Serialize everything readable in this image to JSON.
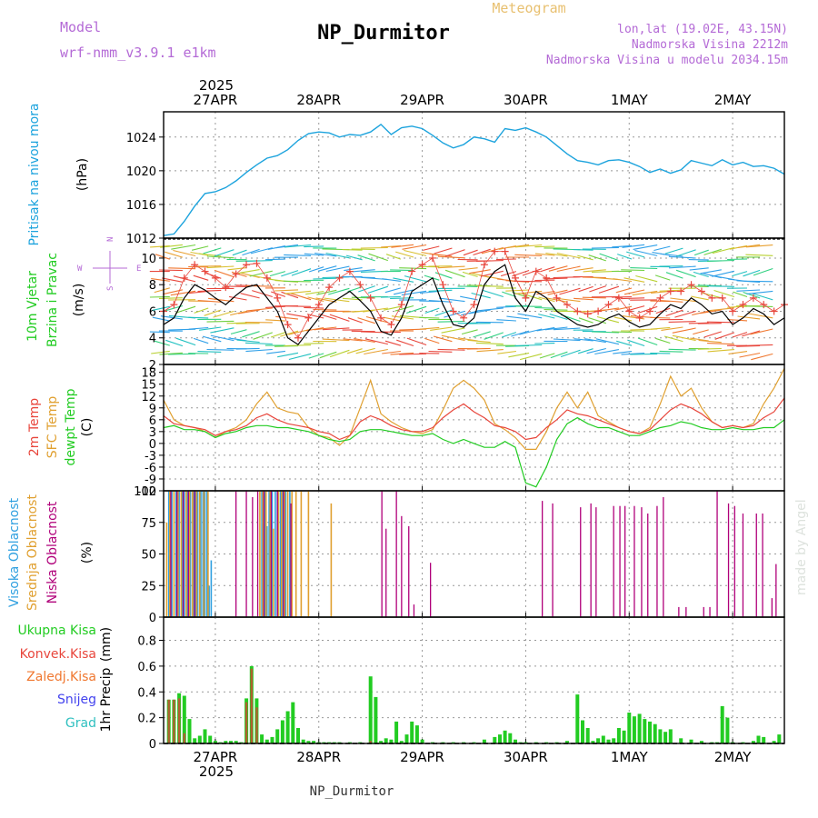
{
  "header": {
    "model_label": "Model",
    "model_value": "wrf-nmm_v3.9.1 e1km",
    "title": "NP_Durmitor",
    "subtitle": "Meteogram",
    "lonlat": "lon,lat (19.02E, 43.15N)",
    "elev": "Nadmorska Visina 2212m",
    "elev_model": "Nadmorska Visina u modelu 2034.15m",
    "footer": "NP_Durmitor",
    "watermark": "made by Angel"
  },
  "time_axis": {
    "year": "2025",
    "days": [
      "27APR",
      "28APR",
      "29APR",
      "30APR",
      "1MAY",
      "2MAY"
    ],
    "start_offset_days": -0.5,
    "end_offset_days": 5.5
  },
  "colors": {
    "pressure": "#1ca3dd",
    "temp2m": "#e8463c",
    "sfc": "#e0a030",
    "dewpt": "#22cc22",
    "low_cloud": "#b0007a",
    "mid_cloud": "#e0a030",
    "high_cloud": "#30a0e0",
    "precip": "#22cc22",
    "conv": "#e8463c"
  },
  "chart_data": [
    {
      "name": "pressure",
      "type": "line",
      "ylabel_main": "Pritisak na nivou mora",
      "ylabel_unit": "(hPa)",
      "ylim": [
        1012,
        1027
      ],
      "yticks": [
        1012,
        1016,
        1020,
        1024
      ],
      "x_days": [
        -0.5,
        -0.4,
        -0.3,
        -0.2,
        -0.1,
        0,
        0.1,
        0.2,
        0.3,
        0.4,
        0.5,
        0.6,
        0.7,
        0.8,
        0.9,
        1.0,
        1.1,
        1.2,
        1.3,
        1.4,
        1.5,
        1.6,
        1.7,
        1.8,
        1.9,
        2.0,
        2.1,
        2.2,
        2.3,
        2.4,
        2.5,
        2.6,
        2.7,
        2.8,
        2.9,
        3.0,
        3.1,
        3.2,
        3.3,
        3.4,
        3.5,
        3.6,
        3.7,
        3.8,
        3.9,
        4.0,
        4.1,
        4.2,
        4.3,
        4.4,
        4.5,
        4.6,
        4.7,
        4.8,
        4.9,
        5.0,
        5.1,
        5.2,
        5.3,
        5.4,
        5.5
      ],
      "values": [
        1012.3,
        1012.5,
        1014.0,
        1015.8,
        1017.3,
        1017.5,
        1018.0,
        1018.8,
        1019.8,
        1020.7,
        1021.5,
        1021.8,
        1022.5,
        1023.6,
        1024.4,
        1024.6,
        1024.5,
        1024.0,
        1024.3,
        1024.2,
        1024.6,
        1025.5,
        1024.3,
        1025.1,
        1025.3,
        1025.0,
        1024.2,
        1023.3,
        1022.7,
        1023.1,
        1024.0,
        1023.8,
        1023.4,
        1025.0,
        1024.8,
        1025.1,
        1024.6,
        1024.0,
        1023.0,
        1022.0,
        1021.2,
        1021.0,
        1020.7,
        1021.2,
        1021.3,
        1021.0,
        1020.5,
        1019.8,
        1020.2,
        1019.7,
        1020.1,
        1021.2,
        1020.9,
        1020.6,
        1021.3,
        1020.7,
        1021.0,
        1020.5,
        1020.6,
        1020.3,
        1019.6
      ]
    },
    {
      "name": "wind",
      "type": "line",
      "ylabel_main": "10m Vjetar",
      "ylabel_sub": "Brzina i Pravac",
      "ylabel_unit": "(m/s)",
      "ylim": [
        2,
        11.5
      ],
      "yticks": [
        2,
        4,
        6,
        8,
        10
      ],
      "compass": {
        "n": "N",
        "e": "E",
        "w": "W",
        "s": "S"
      },
      "x_days": [
        -0.5,
        -0.4,
        -0.3,
        -0.2,
        -0.1,
        0,
        0.1,
        0.2,
        0.3,
        0.4,
        0.5,
        0.6,
        0.7,
        0.8,
        0.9,
        1.0,
        1.1,
        1.2,
        1.3,
        1.4,
        1.5,
        1.6,
        1.7,
        1.8,
        1.9,
        2.0,
        2.1,
        2.2,
        2.3,
        2.4,
        2.5,
        2.6,
        2.7,
        2.8,
        2.9,
        3.0,
        3.1,
        3.2,
        3.3,
        3.4,
        3.5,
        3.6,
        3.7,
        3.8,
        3.9,
        4.0,
        4.1,
        4.2,
        4.3,
        4.4,
        4.5,
        4.6,
        4.7,
        4.8,
        4.9,
        5.0,
        5.1,
        5.2,
        5.3,
        5.4,
        5.5
      ],
      "series": [
        {
          "label": "speed",
          "values": [
            5.0,
            5.5,
            7.0,
            8.0,
            7.6,
            7.0,
            6.5,
            7.2,
            7.8,
            8.0,
            7.0,
            6.0,
            4.0,
            3.5,
            4.5,
            5.5,
            6.5,
            7.0,
            7.5,
            6.8,
            6.0,
            4.5,
            4.2,
            5.5,
            7.5,
            8.0,
            8.5,
            6.5,
            5.0,
            4.8,
            5.5,
            8.0,
            9.0,
            9.5,
            7.0,
            6.0,
            7.5,
            7.0,
            6.0,
            5.5,
            5.0,
            4.8,
            5.0,
            5.5,
            5.8,
            5.2,
            4.8,
            5.0,
            5.8,
            6.5,
            6.2,
            7.0,
            6.5,
            5.8,
            6.0,
            5.0,
            5.5,
            6.2,
            5.8,
            5.0,
            5.5
          ]
        },
        {
          "label": "gust",
          "values": [
            6.0,
            6.5,
            8.5,
            9.5,
            9.0,
            8.5,
            7.8,
            8.8,
            9.5,
            9.6,
            8.5,
            7.0,
            5.0,
            4.0,
            5.5,
            6.5,
            7.8,
            8.5,
            9.0,
            8.0,
            7.0,
            5.5,
            5.0,
            6.5,
            9.0,
            9.5,
            10.0,
            8.0,
            6.0,
            5.5,
            6.5,
            9.5,
            10.5,
            10.5,
            8.5,
            7.0,
            9.0,
            8.5,
            7.0,
            6.5,
            6.0,
            5.8,
            6.0,
            6.5,
            7.0,
            6.0,
            5.5,
            6.0,
            7.0,
            7.5,
            7.5,
            8.0,
            7.5,
            7.0,
            7.0,
            6.0,
            6.5,
            7.0,
            6.5,
            6.0,
            6.5
          ]
        }
      ]
    },
    {
      "name": "temperature",
      "type": "line",
      "ylabel_lines": [
        "2m Temp",
        "SFC Temp",
        "dewpt Temp"
      ],
      "ylabel_unit": "(C)",
      "ylim": [
        -12,
        20
      ],
      "yticks": [
        -12,
        -9,
        -6,
        -3,
        0,
        3,
        6,
        9,
        12,
        15,
        18
      ],
      "x_days": [
        -0.5,
        -0.4,
        -0.3,
        -0.2,
        -0.1,
        0,
        0.1,
        0.2,
        0.3,
        0.4,
        0.5,
        0.6,
        0.7,
        0.8,
        0.9,
        1.0,
        1.1,
        1.2,
        1.3,
        1.4,
        1.5,
        1.6,
        1.7,
        1.8,
        1.9,
        2.0,
        2.1,
        2.2,
        2.3,
        2.4,
        2.5,
        2.6,
        2.7,
        2.8,
        2.9,
        3.0,
        3.1,
        3.2,
        3.3,
        3.4,
        3.5,
        3.6,
        3.7,
        3.8,
        3.9,
        4.0,
        4.1,
        4.2,
        4.3,
        4.4,
        4.5,
        4.6,
        4.7,
        4.8,
        4.9,
        5.0,
        5.1,
        5.2,
        5.3,
        5.4,
        5.5
      ],
      "series": [
        {
          "label": "2m",
          "values": [
            7.0,
            5.0,
            4.5,
            4.0,
            3.5,
            2.0,
            3.0,
            3.5,
            4.5,
            6.5,
            7.5,
            6.0,
            5.0,
            4.5,
            4.0,
            3.0,
            2.5,
            1.0,
            2.0,
            5.5,
            7.0,
            6.0,
            4.5,
            3.5,
            3.0,
            3.0,
            4.0,
            6.5,
            8.5,
            10.0,
            8.0,
            6.5,
            4.5,
            4.0,
            3.0,
            1.0,
            1.5,
            4.0,
            6.0,
            8.5,
            7.5,
            7.0,
            6.0,
            5.0,
            4.0,
            3.0,
            2.5,
            3.5,
            6.0,
            8.5,
            10.0,
            9.0,
            7.5,
            5.5,
            4.0,
            4.5,
            4.0,
            4.5,
            6.5,
            8.0,
            11.5
          ]
        },
        {
          "label": "SFC",
          "values": [
            11.0,
            6.0,
            4.5,
            4.0,
            3.0,
            1.5,
            3.0,
            4.0,
            6.0,
            10.0,
            13.0,
            9.0,
            8.0,
            7.5,
            4.0,
            2.0,
            1.5,
            -0.5,
            2.0,
            9.0,
            16.0,
            7.5,
            5.5,
            4.0,
            3.0,
            2.5,
            3.5,
            8.5,
            14.0,
            16.0,
            14.0,
            11.0,
            5.0,
            3.5,
            1.5,
            -1.5,
            -1.5,
            3.0,
            9.0,
            13.0,
            9.0,
            13.0,
            7.0,
            5.5,
            4.0,
            3.0,
            2.5,
            4.0,
            10.0,
            17.0,
            12.0,
            14.0,
            9.0,
            5.5,
            4.0,
            4.5,
            4.0,
            5.0,
            10.0,
            14.0,
            19.0
          ]
        },
        {
          "label": "dewpt",
          "values": [
            4.0,
            4.5,
            3.5,
            3.5,
            3.0,
            1.5,
            2.5,
            3.0,
            4.0,
            4.5,
            4.5,
            4.0,
            4.0,
            3.5,
            3.0,
            2.0,
            1.0,
            0.5,
            1.0,
            3.0,
            3.5,
            3.5,
            3.0,
            2.5,
            2.0,
            2.0,
            2.5,
            1.0,
            0.0,
            1.0,
            0.0,
            -1.0,
            -1.0,
            0.5,
            -1.0,
            -10.0,
            -11.0,
            -6.0,
            1.0,
            5.0,
            6.5,
            5.0,
            4.0,
            4.0,
            3.0,
            2.0,
            2.0,
            3.0,
            4.0,
            4.5,
            5.5,
            5.0,
            4.0,
            3.5,
            3.5,
            4.0,
            3.5,
            3.5,
            4.0,
            4.0,
            6.0
          ]
        }
      ]
    },
    {
      "name": "cloud",
      "type": "bar",
      "ylabel_lines": [
        "Visoka Oblacnost",
        "Srednja Oblacnost",
        "Niska Oblacnost"
      ],
      "ylabel_unit": "(%)",
      "ylim": [
        0,
        100
      ],
      "yticks": [
        0,
        25,
        50,
        75,
        100
      ],
      "high_x": [
        -0.45,
        -0.42,
        -0.38,
        -0.35,
        -0.32,
        -0.3,
        -0.27,
        -0.24,
        -0.21,
        -0.19,
        -0.17,
        -0.14,
        -0.12,
        -0.1,
        -0.08,
        -0.06,
        -0.04,
        0.45,
        0.48,
        0.5,
        0.52,
        0.55,
        0.58,
        0.6,
        0.63,
        0.65,
        0.68,
        0.72
      ],
      "high_v": [
        100,
        100,
        100,
        100,
        100,
        100,
        100,
        100,
        100,
        100,
        100,
        100,
        100,
        100,
        100,
        25,
        45,
        100,
        100,
        72,
        100,
        100,
        100,
        100,
        100,
        100,
        100,
        100
      ],
      "mid_x": [
        -0.47,
        -0.44,
        -0.4,
        -0.36,
        -0.33,
        -0.28,
        -0.25,
        -0.22,
        -0.18,
        -0.15,
        -0.11,
        -0.07,
        0.43,
        0.46,
        0.49,
        0.53,
        0.56,
        0.61,
        0.64,
        0.67,
        0.7,
        0.74,
        0.78,
        0.83,
        0.9,
        1.12
      ],
      "mid_v": [
        75,
        100,
        100,
        100,
        100,
        100,
        100,
        100,
        100,
        100,
        100,
        100,
        100,
        100,
        100,
        100,
        70,
        100,
        100,
        100,
        100,
        100,
        100,
        100,
        100,
        90
      ],
      "low_x": [
        -0.43,
        -0.37,
        -0.31,
        -0.26,
        -0.2,
        0.2,
        0.3,
        0.36,
        0.41,
        0.47,
        0.54,
        0.6,
        0.66,
        0.73,
        1.61,
        1.65,
        1.75,
        1.8,
        1.87,
        1.92,
        2.08,
        3.16,
        3.26,
        3.53,
        3.63,
        3.68,
        3.85,
        3.91,
        3.96,
        4.05,
        4.12,
        4.18,
        4.27,
        4.33,
        4.48,
        4.55,
        4.72,
        4.78,
        4.85,
        4.96,
        5.02,
        5.1,
        5.23,
        5.29,
        5.38,
        5.42
      ],
      "low_v": [
        100,
        100,
        100,
        100,
        100,
        100,
        100,
        95,
        100,
        100,
        100,
        100,
        100,
        90,
        100,
        70,
        100,
        80,
        72,
        10,
        43,
        92,
        90,
        87,
        90,
        87,
        88,
        88,
        88,
        88,
        87,
        82,
        88,
        95,
        8,
        8,
        8,
        8,
        100,
        90,
        88,
        82,
        82,
        82,
        15,
        42
      ]
    },
    {
      "name": "precipitation",
      "type": "bar",
      "ylabel_main": "1hr Precip",
      "ylabel_unit": "(mm)",
      "legend": [
        "Ukupna Kisa",
        "Konvek.Kisa",
        "Zaledj.Kisa",
        "Snijeg",
        "Grad"
      ],
      "ylim": [
        0,
        0.98
      ],
      "yticks": [
        0,
        0.2,
        0.4,
        0.6,
        0.8
      ],
      "ytick_labels": [
        "0",
        "0.2",
        "0.4",
        "0.6",
        "0.8"
      ],
      "total_x": [
        -0.45,
        -0.4,
        -0.35,
        -0.3,
        -0.25,
        -0.2,
        -0.15,
        -0.1,
        -0.05,
        0.0,
        0.05,
        0.1,
        0.15,
        0.2,
        0.25,
        0.3,
        0.35,
        0.4,
        0.45,
        0.5,
        0.55,
        0.6,
        0.65,
        0.7,
        0.75,
        0.8,
        0.85,
        0.9,
        0.95,
        1.0,
        1.05,
        1.1,
        1.15,
        1.2,
        1.3,
        1.4,
        1.5,
        1.55,
        1.6,
        1.65,
        1.7,
        1.75,
        1.8,
        1.85,
        1.9,
        1.95,
        2.0,
        2.1,
        2.2,
        2.3,
        2.4,
        2.5,
        2.6,
        2.7,
        2.75,
        2.8,
        2.85,
        2.9,
        2.95,
        3.0,
        3.1,
        3.2,
        3.3,
        3.4,
        3.5,
        3.55,
        3.6,
        3.65,
        3.7,
        3.75,
        3.8,
        3.85,
        3.9,
        3.95,
        4.0,
        4.05,
        4.1,
        4.15,
        4.2,
        4.25,
        4.3,
        4.35,
        4.4,
        4.5,
        4.6,
        4.7,
        4.8,
        4.85,
        4.9,
        4.95,
        5.0,
        5.1,
        5.2,
        5.25,
        5.3,
        5.4,
        5.45
      ],
      "total_v": [
        0.34,
        0.34,
        0.39,
        0.37,
        0.19,
        0.04,
        0.06,
        0.11,
        0.06,
        0.02,
        0.01,
        0.02,
        0.02,
        0.02,
        0.01,
        0.35,
        0.6,
        0.35,
        0.07,
        0.03,
        0.05,
        0.11,
        0.18,
        0.25,
        0.32,
        0.12,
        0.03,
        0.02,
        0.02,
        0.01,
        0.01,
        0.01,
        0.01,
        0.01,
        0.01,
        0.01,
        0.52,
        0.36,
        0.02,
        0.04,
        0.03,
        0.17,
        0.02,
        0.07,
        0.17,
        0.14,
        0.03,
        0.01,
        0.01,
        0.01,
        0.01,
        0.01,
        0.03,
        0.05,
        0.07,
        0.1,
        0.08,
        0.03,
        0.01,
        0.01,
        0.01,
        0.01,
        0.01,
        0.02,
        0.38,
        0.18,
        0.12,
        0.02,
        0.04,
        0.06,
        0.03,
        0.04,
        0.12,
        0.1,
        0.24,
        0.21,
        0.23,
        0.19,
        0.17,
        0.15,
        0.11,
        0.09,
        0.11,
        0.04,
        0.03,
        0.02,
        0.01,
        0.01,
        0.29,
        0.2,
        0.01,
        0.01,
        0.02,
        0.06,
        0.05,
        0.02,
        0.07
      ],
      "conv_x": [
        -0.45,
        -0.4,
        -0.35,
        -0.3,
        0.3,
        0.35,
        0.4,
        1.5
      ],
      "conv_v": [
        0.34,
        0.34,
        0.35,
        0.08,
        0.32,
        0.58,
        0.28,
        0.02
      ]
    }
  ]
}
